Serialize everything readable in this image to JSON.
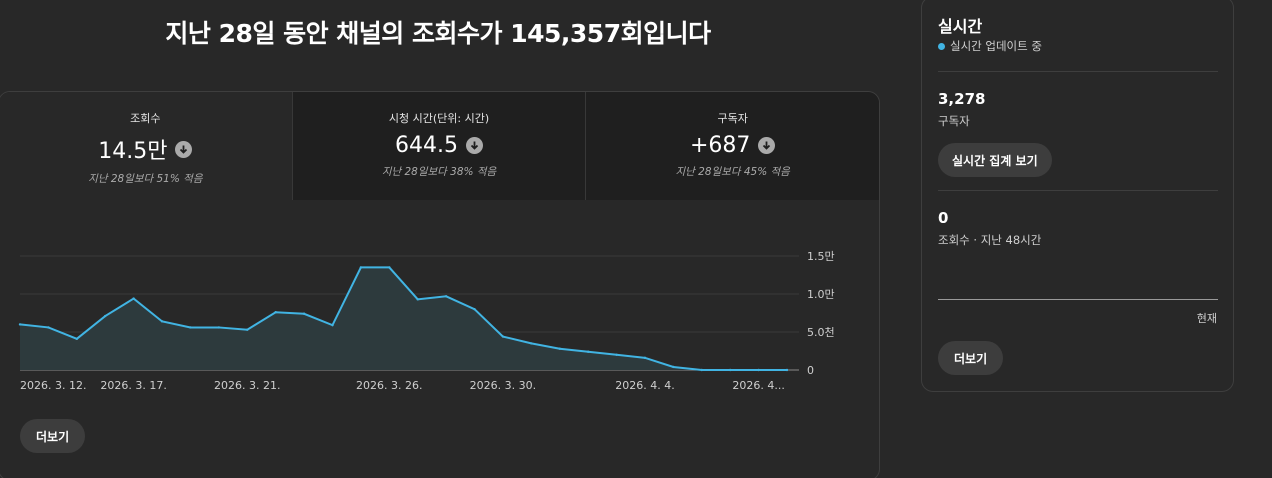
{
  "headline": "지난 28일 동안 채널의 조회수가 145,357회입니다",
  "metrics": [
    {
      "label": "조회수",
      "value": "14.5만",
      "sub": "지난 28일보다 51% 적음"
    },
    {
      "label": "시청 시간(단위: 시간)",
      "value": "644.5",
      "sub": "지난 28일보다 38% 적음"
    },
    {
      "label": "구독자",
      "value": "+687",
      "sub": "지난 28일보다 45% 적음"
    }
  ],
  "chart_data": {
    "type": "area",
    "x_tick_labels": [
      "2026. 3. 12.",
      "2026. 3. 17.",
      "2026. 3. 21.",
      "2026. 3. 26.",
      "2026. 3. 30.",
      "2026. 4. 4.",
      "2026. 4..."
    ],
    "y_tick_labels": [
      "1.5만",
      "1.0만",
      "5.0천",
      "0"
    ],
    "y_ticks": [
      15000,
      10000,
      5000,
      0
    ],
    "ylim": [
      0,
      15000
    ],
    "series": [
      {
        "values": [
          6000,
          5600,
          4100,
          7100,
          9400,
          6400,
          5600,
          5600,
          5300,
          7600,
          7400,
          5900,
          13500,
          13500,
          9300,
          9700,
          8000,
          4400,
          3500,
          2800,
          2400,
          2000,
          1600,
          400,
          0,
          0,
          0,
          0
        ]
      }
    ],
    "grid": true,
    "colors": {
      "line": "#41b4e3",
      "fill": "#2d3a3d"
    }
  },
  "main_more_label": "더보기",
  "realtime": {
    "title": "실시간",
    "live_text": "실시간 업데이트 중",
    "subscribers_value": "3,278",
    "subscribers_label": "구독자",
    "button_label": "실시간 집계 보기",
    "views_value": "0",
    "views_label": "조회수 · 지난 48시간",
    "now_label": "현재",
    "more_label": "더보기"
  }
}
